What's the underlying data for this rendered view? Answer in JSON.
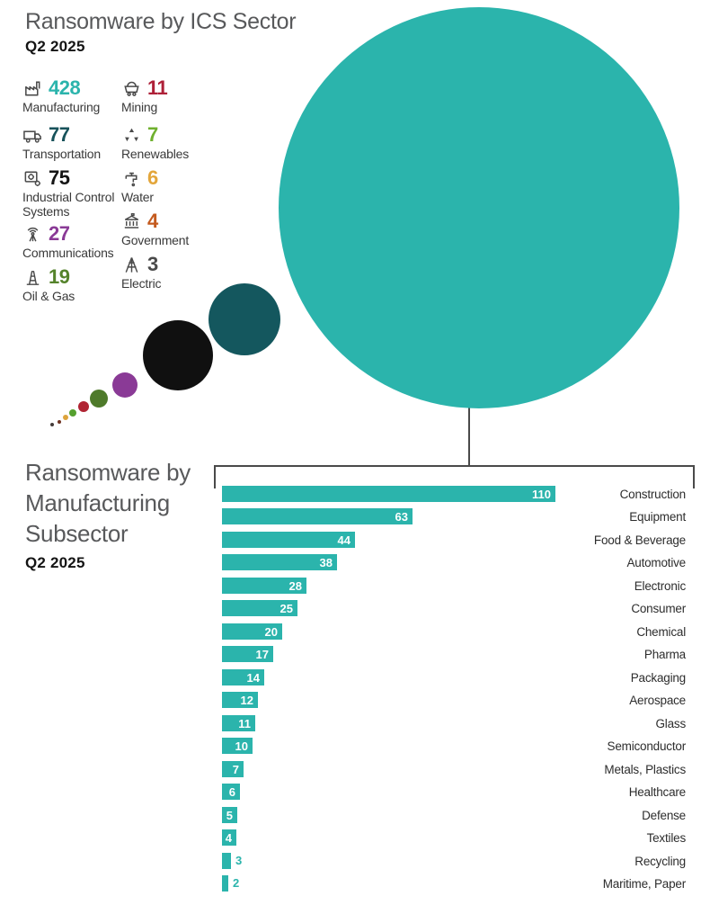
{
  "chart_data": [
    {
      "type": "bubble",
      "title": "Ransomware by ICS Sector",
      "subtitle": "Q2 2025",
      "legend_position": "left",
      "series": [
        {
          "name": "Manufacturing",
          "value": 428,
          "number_color": "#2BB4AC",
          "bubble_color": "#2BB4AC",
          "icon": "factory"
        },
        {
          "name": "Transportation",
          "value": 77,
          "number_color": "#17525A",
          "bubble_color": "#14575E",
          "icon": "truck"
        },
        {
          "name": "Industrial Control Systems",
          "value": 75,
          "number_color": "#151515",
          "bubble_color": "#101010",
          "icon": "gears"
        },
        {
          "name": "Communications",
          "value": 27,
          "number_color": "#8A3A96",
          "bubble_color": "#8A3A96",
          "icon": "antenna"
        },
        {
          "name": "Oil & Gas",
          "value": 19,
          "number_color": "#55832B",
          "bubble_color": "#4E7A2A",
          "icon": "oil-derrick"
        },
        {
          "name": "Mining",
          "value": 11,
          "number_color": "#AE2038",
          "bubble_color": "#B02433",
          "icon": "mining-cart"
        },
        {
          "name": "Renewables",
          "value": 7,
          "number_color": "#6FB02E",
          "bubble_color": "#55A02E",
          "icon": "recycle"
        },
        {
          "name": "Water",
          "value": 6,
          "number_color": "#E3A63B",
          "bubble_color": "#DDA43C",
          "icon": "faucet"
        },
        {
          "name": "Government",
          "value": 4,
          "number_color": "#C45A1E",
          "bubble_color": "#6E3322",
          "icon": "government-building"
        },
        {
          "name": "Electric",
          "value": 3,
          "number_color": "#4A4A4A",
          "bubble_color": "#443C3A",
          "icon": "transmission-tower"
        }
      ]
    },
    {
      "type": "bar",
      "title": "Ransomware by Manufacturing Subsector",
      "title_lines": [
        "Ransomware by",
        "Manufacturing",
        "Subsector"
      ],
      "subtitle": "Q2 2025",
      "orientation": "horizontal",
      "bar_color": "#2BB4AC",
      "xlim": [
        0,
        110
      ],
      "grid": false,
      "legend_position": "none",
      "value_labels": "at-bar-end",
      "categories": [
        "Construction",
        "Equipment",
        "Food & Beverage",
        "Automotive",
        "Electronic",
        "Consumer",
        "Chemical",
        "Pharma",
        "Packaging",
        "Aerospace",
        "Glass",
        "Semiconductor",
        "Metals, Plastics",
        "Healthcare",
        "Defense",
        "Textiles",
        "Recycling",
        "Maritime, Paper"
      ],
      "values": [
        110,
        63,
        44,
        38,
        28,
        25,
        20,
        17,
        14,
        12,
        11,
        10,
        7,
        6,
        5,
        4,
        3,
        2
      ]
    }
  ]
}
